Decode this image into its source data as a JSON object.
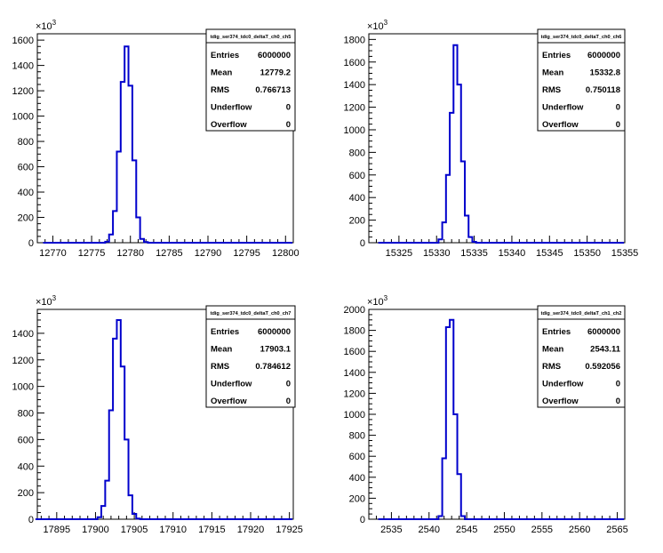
{
  "chart_data": [
    {
      "type": "histogram",
      "stats_title": "tdig_ser374_tdc0_deltaT_ch0_ch5",
      "y_exponent_label": "×10",
      "y_exponent": "3",
      "xlim": [
        12768,
        12801
      ],
      "ylim": [
        0,
        1650
      ],
      "x_ticks": [
        12770,
        12775,
        12780,
        12785,
        12790,
        12795,
        12800
      ],
      "y_ticks": [
        0,
        200,
        400,
        600,
        800,
        1000,
        1200,
        1400,
        1600
      ],
      "bin_width": 0.5,
      "bins": [
        {
          "x": 12777.0,
          "y": 8
        },
        {
          "x": 12777.5,
          "y": 65
        },
        {
          "x": 12778.0,
          "y": 250
        },
        {
          "x": 12778.5,
          "y": 720
        },
        {
          "x": 12779.0,
          "y": 1270
        },
        {
          "x": 12779.5,
          "y": 1550
        },
        {
          "x": 12780.0,
          "y": 1240
        },
        {
          "x": 12780.5,
          "y": 650
        },
        {
          "x": 12781.0,
          "y": 200
        },
        {
          "x": 12781.5,
          "y": 30
        },
        {
          "x": 12782.0,
          "y": 5
        }
      ],
      "stats": [
        {
          "label": "Entries",
          "value": "6000000"
        },
        {
          "label": "Mean",
          "value": "12779.2"
        },
        {
          "label": "RMS",
          "value": "0.766713"
        },
        {
          "label": "Underflow",
          "value": "0"
        },
        {
          "label": "Overflow",
          "value": "0"
        }
      ]
    },
    {
      "type": "histogram",
      "stats_title": "tdig_ser374_tdc0_deltaT_ch0_ch6",
      "y_exponent_label": "×10",
      "y_exponent": "3",
      "xlim": [
        15321,
        15355
      ],
      "ylim": [
        0,
        1850
      ],
      "x_ticks": [
        15325,
        15330,
        15335,
        15340,
        15345,
        15350,
        15355
      ],
      "y_ticks": [
        0,
        200,
        400,
        600,
        800,
        1000,
        1200,
        1400,
        1600,
        1800
      ],
      "bin_width": 0.5,
      "bins": [
        {
          "x": 15330.5,
          "y": 30
        },
        {
          "x": 15331.0,
          "y": 180
        },
        {
          "x": 15331.5,
          "y": 600
        },
        {
          "x": 15332.0,
          "y": 1150
        },
        {
          "x": 15332.5,
          "y": 1750
        },
        {
          "x": 15333.0,
          "y": 1400
        },
        {
          "x": 15333.5,
          "y": 720
        },
        {
          "x": 15334.0,
          "y": 240
        },
        {
          "x": 15334.5,
          "y": 50
        },
        {
          "x": 15335.0,
          "y": 8
        }
      ],
      "stats": [
        {
          "label": "Entries",
          "value": "6000000"
        },
        {
          "label": "Mean",
          "value": "15332.8"
        },
        {
          "label": "RMS",
          "value": "0.750118"
        },
        {
          "label": "Underflow",
          "value": "0"
        },
        {
          "label": "Overflow",
          "value": "0"
        }
      ]
    },
    {
      "type": "histogram",
      "stats_title": "tdig_ser374_tdc0_deltaT_ch0_ch7",
      "y_exponent_label": "×10",
      "y_exponent": "3",
      "xlim": [
        17892.5,
        17925.5
      ],
      "ylim": [
        0,
        1580
      ],
      "x_ticks": [
        17895,
        17900,
        17905,
        17910,
        17915,
        17920,
        17925
      ],
      "y_ticks": [
        0,
        200,
        400,
        600,
        800,
        1000,
        1200,
        1400
      ],
      "bin_width": 0.5,
      "bins": [
        {
          "x": 17900.5,
          "y": 15
        },
        {
          "x": 17901.0,
          "y": 100
        },
        {
          "x": 17901.5,
          "y": 290
        },
        {
          "x": 17902.0,
          "y": 820
        },
        {
          "x": 17902.5,
          "y": 1360
        },
        {
          "x": 17903.0,
          "y": 1500
        },
        {
          "x": 17903.5,
          "y": 1150
        },
        {
          "x": 17904.0,
          "y": 600
        },
        {
          "x": 17904.5,
          "y": 180
        },
        {
          "x": 17905.0,
          "y": 40
        },
        {
          "x": 17905.5,
          "y": 5
        }
      ],
      "stats": [
        {
          "label": "Entries",
          "value": "6000000"
        },
        {
          "label": "Mean",
          "value": "17903.1"
        },
        {
          "label": "RMS",
          "value": "0.784612"
        },
        {
          "label": "Underflow",
          "value": "0"
        },
        {
          "label": "Overflow",
          "value": "0"
        }
      ]
    },
    {
      "type": "histogram",
      "stats_title": "tdig_ser374_tdc0_deltaT_ch1_ch2",
      "y_exponent_label": "×10",
      "y_exponent": "3",
      "xlim": [
        2532,
        2566
      ],
      "ylim": [
        0,
        2000
      ],
      "x_ticks": [
        2535,
        2540,
        2545,
        2550,
        2555,
        2560,
        2565
      ],
      "y_ticks": [
        0,
        200,
        400,
        600,
        800,
        1000,
        1200,
        1400,
        1600,
        1800,
        2000
      ],
      "bin_width": 0.5,
      "bins": [
        {
          "x": 2541.5,
          "y": 30
        },
        {
          "x": 2542.0,
          "y": 580
        },
        {
          "x": 2542.5,
          "y": 1830
        },
        {
          "x": 2543.0,
          "y": 1900
        },
        {
          "x": 2543.5,
          "y": 1000
        },
        {
          "x": 2544.0,
          "y": 430
        },
        {
          "x": 2544.5,
          "y": 30
        }
      ],
      "stats": [
        {
          "label": "Entries",
          "value": "6000000"
        },
        {
          "label": "Mean",
          "value": "2543.11"
        },
        {
          "label": "RMS",
          "value": "0.592056"
        },
        {
          "label": "Underflow",
          "value": "0"
        },
        {
          "label": "Overflow",
          "value": "0"
        }
      ]
    }
  ],
  "colors": {
    "histogram_line": "#0000cc",
    "axis": "#000000",
    "background": "#ffffff"
  }
}
